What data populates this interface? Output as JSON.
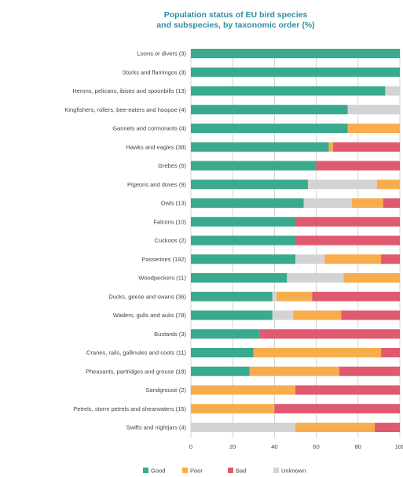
{
  "chart_data": {
    "type": "bar",
    "stacked": true,
    "orientation": "horizontal",
    "title": "Population status of EU bird species",
    "subtitle": "and subspecies, by taxonomic order (%)",
    "categories": [
      "Loons or divers (3)",
      "Storks and flamingos (3)",
      "Herons, pelicans, ibises and spoonbills (13)",
      "Kingfishers, rollers, bee-eaters and hoopoe (4)",
      "Gannets and cormorants (4)",
      "Hawks and eagles (38)",
      "Grebes (5)",
      "Pigeons and doves (9)",
      "Owls (13)",
      "Falcons (10)",
      "Cuckoos (2)",
      "Passerines (192)",
      "Woodpeckers (11)",
      "Ducks, geese and swans (36)",
      "Waders, gulls and auks (78)",
      "Bustards (3)",
      "Cranes, rails, gallinules and coots (11)",
      "Pheasants, partridges and grouse (18)",
      "Sandgrouse (2)",
      "Petrels, storm petrels and shearwaters (15)",
      "Swifts and nightjars (4)"
    ],
    "series": [
      {
        "name": "Good",
        "color": "#3aaa8e",
        "values": [
          100,
          100,
          93,
          75,
          75,
          66,
          60,
          56,
          54,
          50,
          50,
          50,
          46,
          39,
          39,
          33,
          30,
          28,
          0,
          0,
          0
        ]
      },
      {
        "name": "Poor",
        "color": "#f7ad4d",
        "values": [
          0,
          0,
          0,
          0,
          25,
          2,
          0,
          11,
          15,
          0,
          0,
          27,
          27,
          17,
          23,
          0,
          61,
          43,
          50,
          40,
          38
        ]
      },
      {
        "name": "Bad",
        "color": "#e05a6f",
        "values": [
          0,
          0,
          0,
          0,
          0,
          32,
          40,
          0,
          8,
          50,
          50,
          9,
          0,
          42,
          28,
          67,
          9,
          29,
          50,
          60,
          12
        ]
      },
      {
        "name": "Unknown",
        "color": "#d3d3d3",
        "values": [
          0,
          0,
          7,
          25,
          0,
          0,
          0,
          33,
          23,
          0,
          0,
          14,
          27,
          2,
          10,
          0,
          0,
          0,
          0,
          0,
          50
        ]
      }
    ],
    "series_order_on_bar": [
      "Good",
      "Unknown",
      "Poor",
      "Bad"
    ],
    "xlim": [
      0,
      100
    ],
    "xticks": [
      0,
      20,
      40,
      60,
      80,
      100
    ],
    "grid": true,
    "legend_position": "bottom-center"
  }
}
